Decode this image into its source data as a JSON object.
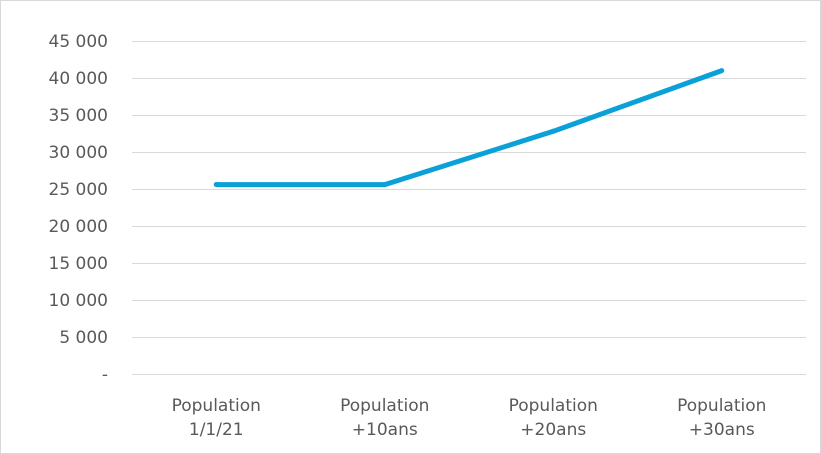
{
  "chart_data": {
    "type": "line",
    "title": "",
    "xlabel": "",
    "ylabel": "",
    "categories": [
      [
        "Population",
        "1/1/21"
      ],
      [
        "Population",
        "+10ans"
      ],
      [
        "Population",
        "+20ans"
      ],
      [
        "Population",
        "+30ans"
      ]
    ],
    "series": [
      {
        "values": [
          25600,
          25600,
          32800,
          41000
        ]
      }
    ],
    "ylim": [
      0,
      45000
    ],
    "yticks": [
      {
        "value": 45000,
        "label": "45 000"
      },
      {
        "value": 40000,
        "label": "40 000"
      },
      {
        "value": 35000,
        "label": "35 000"
      },
      {
        "value": 30000,
        "label": "30 000"
      },
      {
        "value": 25000,
        "label": "25 000"
      },
      {
        "value": 20000,
        "label": "20 000"
      },
      {
        "value": 15000,
        "label": "15 000"
      },
      {
        "value": 10000,
        "label": "10 000"
      },
      {
        "value": 5000,
        "label": "5 000"
      },
      {
        "value": 0,
        "label": "-"
      }
    ],
    "grid": true,
    "legend": "none",
    "line_color": "#0aa0d8",
    "grid_color": "#d9d9d9",
    "text_color": "#595959"
  }
}
